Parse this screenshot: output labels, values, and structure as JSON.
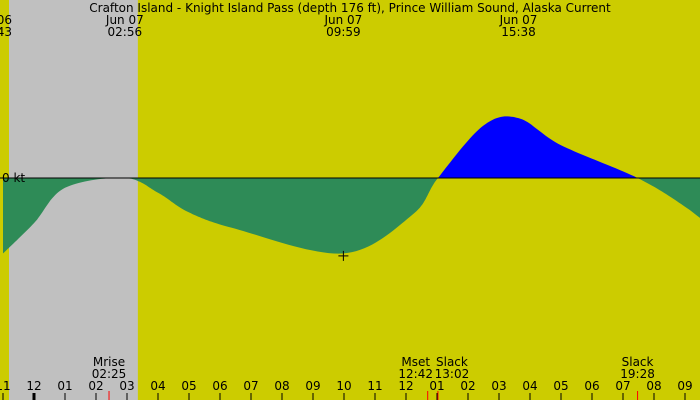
{
  "chart_data": {
    "type": "area",
    "title": "Crafton Island - Knight Island Pass (depth 176 ft), Prince William Sound, Alaska Current",
    "zero_label": "0 kt",
    "colors": {
      "background": "#cccc00",
      "night": "#c0c0c0",
      "ebb": "#2e8b57",
      "flood": "#0000ff",
      "marker": "#ff0000",
      "text": "#000000"
    },
    "x_axis": {
      "start_hour": 23,
      "end_hour": 33.5,
      "tick_labels": [
        "11",
        "12",
        "01",
        "02",
        "03",
        "04",
        "05",
        "06",
        "07",
        "08",
        "09",
        "10",
        "11",
        "12",
        "01",
        "02",
        "03",
        "04",
        "05",
        "06",
        "07",
        "08",
        "09"
      ]
    },
    "ylim": [
      -1.0,
      1.0
    ],
    "night": [
      {
        "from_hour": 23.0,
        "to_hour": 27.35
      }
    ],
    "current_curve": [
      {
        "t": 23.0,
        "v": -0.92
      },
      {
        "t": 24.0,
        "v": -0.55
      },
      {
        "t": 25.0,
        "v": -0.12
      },
      {
        "t": 26.93,
        "v": 0.0
      },
      {
        "t": 28.0,
        "v": -0.18
      },
      {
        "t": 29.0,
        "v": -0.42
      },
      {
        "t": 30.5,
        "v": -0.62
      },
      {
        "t": 33.98,
        "v": -0.92
      },
      {
        "t": 36.2,
        "v": -0.45
      },
      {
        "t": 37.03,
        "v": 0.0
      },
      {
        "t": 38.5,
        "v": 0.64
      },
      {
        "t": 39.63,
        "v": 0.73
      },
      {
        "t": 41.0,
        "v": 0.4
      },
      {
        "t": 43.47,
        "v": 0.0
      },
      {
        "t": 45.0,
        "v": -0.35
      },
      {
        "t": 46.0,
        "v": -0.65
      }
    ],
    "top_events": [
      {
        "hour": 23.0,
        "date": "06",
        "time": "43"
      },
      {
        "hour": 26.93,
        "date": "Jun 07",
        "time": "02:56"
      },
      {
        "hour": 33.98,
        "date": "Jun 07",
        "time": "09:59"
      },
      {
        "hour": 39.63,
        "date": "Jun 07",
        "time": "15:38"
      }
    ],
    "bottom_events": [
      {
        "hour": 26.42,
        "label": "Mrise",
        "time": "02:25",
        "marker": "red"
      },
      {
        "hour": 36.7,
        "label": "Mset",
        "time": "12:42",
        "marker": "red"
      },
      {
        "hour": 37.03,
        "label": "Slack",
        "time": "13:02",
        "marker": "red"
      },
      {
        "hour": 43.47,
        "label": "Slack",
        "time": "19:28",
        "marker": "red"
      }
    ],
    "crosshair_hour": 33.98
  }
}
